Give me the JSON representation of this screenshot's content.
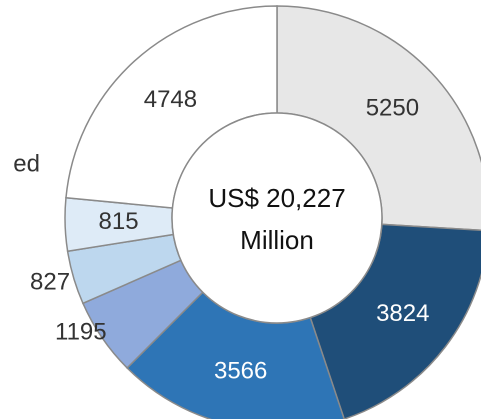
{
  "chart_data": {
    "type": "donut",
    "center_text": [
      "US$ 20,227",
      "Million"
    ],
    "annotation": "ed",
    "categories": [
      null,
      null,
      null,
      null,
      null,
      null,
      null
    ],
    "values": [
      5250,
      3824,
      3566,
      1195,
      827,
      815,
      4748
    ],
    "colors": [
      "#e7e7e7",
      "#1f4e79",
      "#2e75b6",
      "#8faadc",
      "#bdd7ee",
      "#deebf7",
      "#ffffff"
    ]
  }
}
